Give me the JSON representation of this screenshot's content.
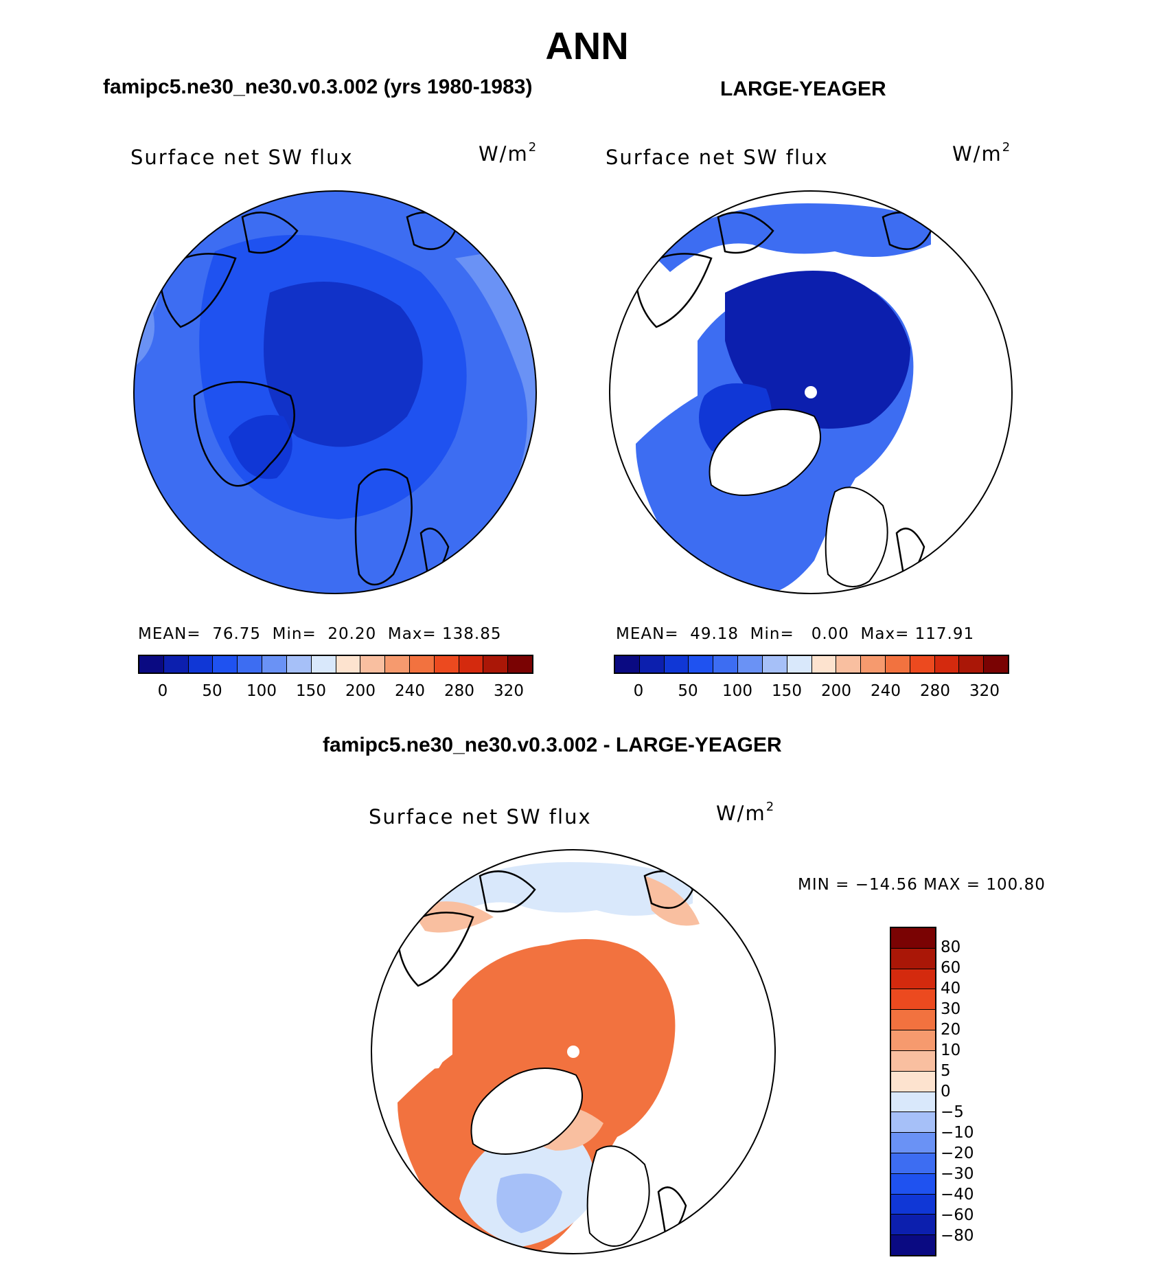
{
  "page": {
    "title": "ANN",
    "panel_left_title": "famipc5.ne30_ne30.v0.3.002 (yrs 1980-1983)",
    "panel_right_title": "LARGE-YEAGER",
    "panel_bottom_title": "famipc5.ne30_ne30.v0.3.002 - LARGE-YEAGER"
  },
  "panels": [
    {
      "variable": "Surface net SW flux",
      "units_base": "W/m",
      "units_exp": "2",
      "stats": "MEAN=  76.75  Min=  20.20  Max= 138.85",
      "mean": 76.75,
      "min": 20.2,
      "max": 138.85
    },
    {
      "variable": "Surface net SW flux",
      "units_base": "W/m",
      "units_exp": "2",
      "stats": "MEAN=  49.18  Min=   0.00  Max= 117.91",
      "mean": 49.18,
      "min": 0.0,
      "max": 117.91
    },
    {
      "variable": "Surface net SW flux",
      "units_base": "W/m",
      "units_exp": "2",
      "stats": "MIN = −14.56 MAX = 100.80",
      "min": -14.56,
      "max": 100.8
    }
  ],
  "abs_colorbar": {
    "tick_labels": [
      "0",
      "50",
      "100",
      "150",
      "200",
      "240",
      "280",
      "320"
    ],
    "colors": [
      "#0a0a82",
      "#0c1fae",
      "#1037d6",
      "#1f52f0",
      "#3d6df2",
      "#6a92f5",
      "#a6c0f8",
      "#d9e8fb",
      "#fde3cf",
      "#f9bfa0",
      "#f69a6e",
      "#f2723f",
      "#ec4a1f",
      "#d42a0e",
      "#aa1707",
      "#7a0303"
    ]
  },
  "diff_colorbar": {
    "tick_labels": [
      "80",
      "60",
      "40",
      "30",
      "20",
      "10",
      "5",
      "0",
      "−5",
      "−10",
      "−20",
      "−30",
      "−40",
      "−60",
      "−80"
    ],
    "colors": [
      "#7a0303",
      "#aa1707",
      "#d42a0e",
      "#ec4a1f",
      "#f2723f",
      "#f69a6e",
      "#f9bfa0",
      "#fde3cf",
      "#d9e8fb",
      "#a6c0f8",
      "#6a92f5",
      "#3d6df2",
      "#1f52f0",
      "#1037d6",
      "#0c1fae",
      "#0a0a82"
    ]
  },
  "map_colors": {
    "deep": "#1132c8",
    "mid": "#1f52f0",
    "light": "#3d6df2",
    "pale": "#6a92f5",
    "land_mask": "#ffffff",
    "diff_warm": "#f2723f",
    "diff_hot": "#ec4a1f",
    "diff_pale": "#f9bfa0",
    "diff_cool": "#d9e8fb",
    "diff_blue": "#a6c0f8"
  }
}
